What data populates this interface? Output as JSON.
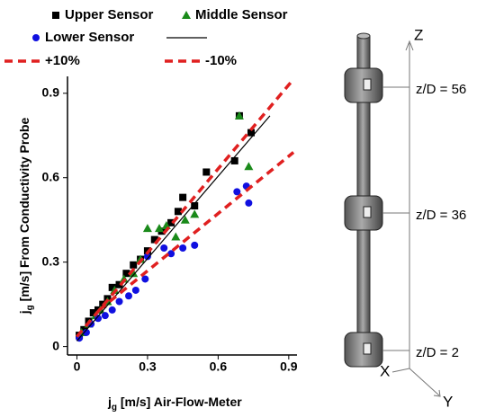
{
  "chart_data": {
    "type": "scatter",
    "xlabel": [
      "j",
      "g",
      " [m/s] Air-Flow-Meter"
    ],
    "ylabel": [
      "j",
      "g",
      " [m/s] From Conductivity Probe"
    ],
    "xlim": [
      -0.04,
      0.935
    ],
    "ylim": [
      -0.03,
      0.96
    ],
    "xticks": [
      0,
      0.3,
      0.6,
      0.9
    ],
    "yticks": [
      0,
      0.3,
      0.6,
      0.9
    ],
    "series": [
      {
        "name": "Upper Sensor",
        "color": "#000000",
        "marker": "square",
        "x": [
          0.01,
          0.03,
          0.05,
          0.07,
          0.09,
          0.11,
          0.13,
          0.15,
          0.18,
          0.21,
          0.24,
          0.27,
          0.3,
          0.33,
          0.36,
          0.4,
          0.43,
          0.45,
          0.5,
          0.55,
          0.67,
          0.69,
          0.74
        ],
        "values": [
          0.04,
          0.06,
          0.09,
          0.12,
          0.13,
          0.15,
          0.17,
          0.21,
          0.22,
          0.26,
          0.29,
          0.31,
          0.34,
          0.38,
          0.41,
          0.44,
          0.48,
          0.53,
          0.5,
          0.62,
          0.66,
          0.82,
          0.76
        ]
      },
      {
        "name": "Middle Sensor",
        "color": "#1a8a1a",
        "marker": "triangle",
        "x": [
          0.02,
          0.05,
          0.08,
          0.1,
          0.13,
          0.16,
          0.2,
          0.24,
          0.27,
          0.3,
          0.35,
          0.38,
          0.42,
          0.46,
          0.5,
          0.69,
          0.73
        ],
        "values": [
          0.05,
          0.08,
          0.11,
          0.13,
          0.16,
          0.2,
          0.24,
          0.26,
          0.31,
          0.42,
          0.42,
          0.43,
          0.39,
          0.45,
          0.47,
          0.82,
          0.64
        ]
      },
      {
        "name": "Lower Sensor",
        "color": "#1010e0",
        "marker": "circle",
        "x": [
          0.01,
          0.04,
          0.06,
          0.09,
          0.12,
          0.15,
          0.18,
          0.22,
          0.25,
          0.29,
          0.3,
          0.37,
          0.4,
          0.45,
          0.5,
          0.68,
          0.72,
          0.73
        ],
        "values": [
          0.03,
          0.05,
          0.08,
          0.1,
          0.11,
          0.13,
          0.16,
          0.18,
          0.2,
          0.24,
          0.32,
          0.35,
          0.33,
          0.35,
          0.36,
          0.55,
          0.57,
          0.51
        ]
      },
      {
        "color": "#000000",
        "style": "solid",
        "x": [
          0,
          0.82
        ],
        "values": [
          0.02,
          0.82
        ]
      },
      {
        "name": "+10%",
        "color": "#e02020",
        "style": "dashed",
        "x": [
          0,
          0.92
        ],
        "values": [
          0.035,
          0.95
        ]
      },
      {
        "name": "-10%",
        "color": "#e02020",
        "style": "dashed",
        "x": [
          0.095,
          0.92
        ],
        "values": [
          0.13,
          0.69
        ]
      }
    ]
  },
  "diagram": {
    "axes": {
      "z": "Z",
      "x": "X",
      "y": "Y"
    },
    "levels": [
      "z/D = 56",
      "z/D = 36",
      "z/D = 2"
    ]
  }
}
